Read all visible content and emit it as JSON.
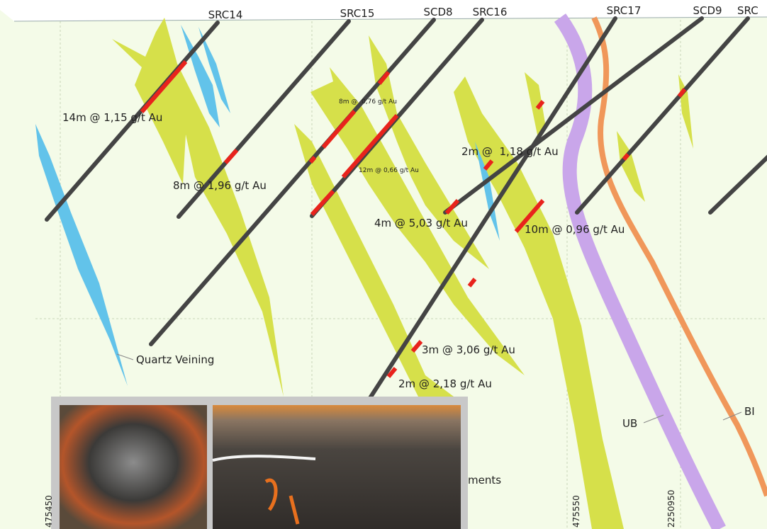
{
  "drill_holes": [
    "SRC14",
    "SRC15",
    "SCD8",
    "SRC16",
    "SRC17",
    "SCD9",
    "SRC"
  ],
  "intercepts": [
    "14m @ 1,15 g/t Au",
    "8m @ 1,96 g/t Au",
    "8m @  0,76 g/t Au",
    "12m @ 0,66 g/t Au",
    "2m @  1,18 g/t Au",
    "4m @ 5,03 g/t Au",
    "10m @ 0,96 g/t Au",
    "3m @ 3,06 g/t Au",
    "2m @ 2,18 g/t Au"
  ],
  "units": [
    "Quartz Veining",
    "UB",
    "BI",
    "ments"
  ],
  "coordinates": [
    "475450",
    "475550",
    "2250950"
  ]
}
